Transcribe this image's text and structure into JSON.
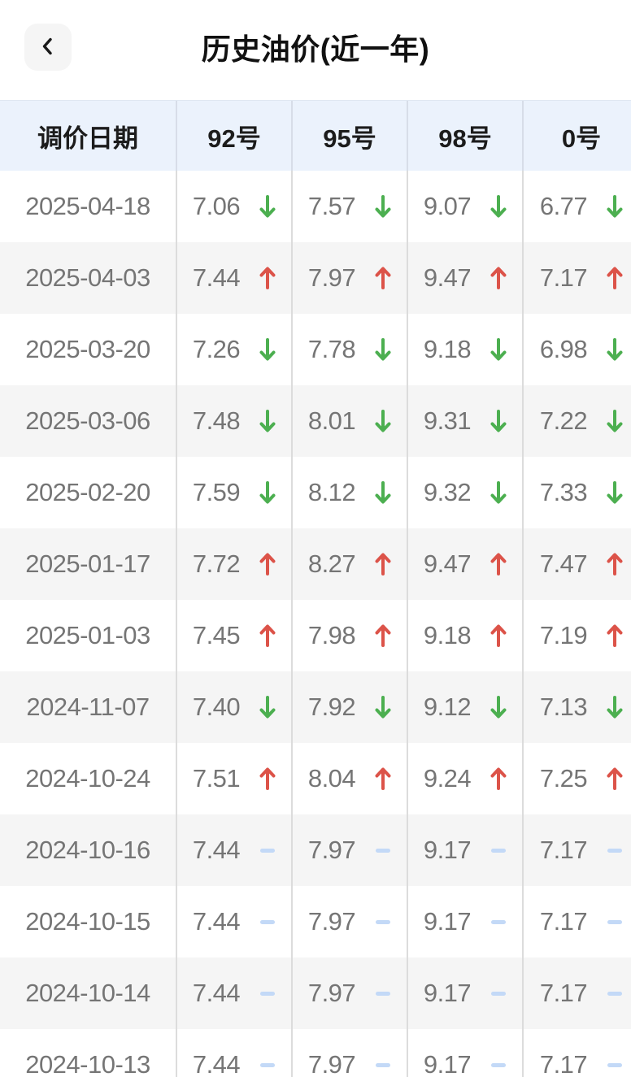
{
  "topbar": {
    "back_icon": "chevron-left-icon",
    "title": "历史油价(近一年)"
  },
  "table": {
    "columns": [
      "调价日期",
      "92号",
      "95号",
      "98号",
      "0号"
    ],
    "rows": [
      {
        "date": "2025-04-18",
        "prices": [
          {
            "value": "7.06",
            "trend": "down"
          },
          {
            "value": "7.57",
            "trend": "down"
          },
          {
            "value": "9.07",
            "trend": "down"
          },
          {
            "value": "6.77",
            "trend": "down"
          }
        ]
      },
      {
        "date": "2025-04-03",
        "prices": [
          {
            "value": "7.44",
            "trend": "up"
          },
          {
            "value": "7.97",
            "trend": "up"
          },
          {
            "value": "9.47",
            "trend": "up"
          },
          {
            "value": "7.17",
            "trend": "up"
          }
        ]
      },
      {
        "date": "2025-03-20",
        "prices": [
          {
            "value": "7.26",
            "trend": "down"
          },
          {
            "value": "7.78",
            "trend": "down"
          },
          {
            "value": "9.18",
            "trend": "down"
          },
          {
            "value": "6.98",
            "trend": "down"
          }
        ]
      },
      {
        "date": "2025-03-06",
        "prices": [
          {
            "value": "7.48",
            "trend": "down"
          },
          {
            "value": "8.01",
            "trend": "down"
          },
          {
            "value": "9.31",
            "trend": "down"
          },
          {
            "value": "7.22",
            "trend": "down"
          }
        ]
      },
      {
        "date": "2025-02-20",
        "prices": [
          {
            "value": "7.59",
            "trend": "down"
          },
          {
            "value": "8.12",
            "trend": "down"
          },
          {
            "value": "9.32",
            "trend": "down"
          },
          {
            "value": "7.33",
            "trend": "down"
          }
        ]
      },
      {
        "date": "2025-01-17",
        "prices": [
          {
            "value": "7.72",
            "trend": "up"
          },
          {
            "value": "8.27",
            "trend": "up"
          },
          {
            "value": "9.47",
            "trend": "up"
          },
          {
            "value": "7.47",
            "trend": "up"
          }
        ]
      },
      {
        "date": "2025-01-03",
        "prices": [
          {
            "value": "7.45",
            "trend": "up"
          },
          {
            "value": "7.98",
            "trend": "up"
          },
          {
            "value": "9.18",
            "trend": "up"
          },
          {
            "value": "7.19",
            "trend": "up"
          }
        ]
      },
      {
        "date": "2024-11-07",
        "prices": [
          {
            "value": "7.40",
            "trend": "down"
          },
          {
            "value": "7.92",
            "trend": "down"
          },
          {
            "value": "9.12",
            "trend": "down"
          },
          {
            "value": "7.13",
            "trend": "down"
          }
        ]
      },
      {
        "date": "2024-10-24",
        "prices": [
          {
            "value": "7.51",
            "trend": "up"
          },
          {
            "value": "8.04",
            "trend": "up"
          },
          {
            "value": "9.24",
            "trend": "up"
          },
          {
            "value": "7.25",
            "trend": "up"
          }
        ]
      },
      {
        "date": "2024-10-16",
        "prices": [
          {
            "value": "7.44",
            "trend": "flat"
          },
          {
            "value": "7.97",
            "trend": "flat"
          },
          {
            "value": "9.17",
            "trend": "flat"
          },
          {
            "value": "7.17",
            "trend": "flat"
          }
        ]
      },
      {
        "date": "2024-10-15",
        "prices": [
          {
            "value": "7.44",
            "trend": "flat"
          },
          {
            "value": "7.97",
            "trend": "flat"
          },
          {
            "value": "9.17",
            "trend": "flat"
          },
          {
            "value": "7.17",
            "trend": "flat"
          }
        ]
      },
      {
        "date": "2024-10-14",
        "prices": [
          {
            "value": "7.44",
            "trend": "flat"
          },
          {
            "value": "7.97",
            "trend": "flat"
          },
          {
            "value": "9.17",
            "trend": "flat"
          },
          {
            "value": "7.17",
            "trend": "flat"
          }
        ]
      },
      {
        "date": "2024-10-13",
        "prices": [
          {
            "value": "7.44",
            "trend": "flat"
          },
          {
            "value": "7.97",
            "trend": "flat"
          },
          {
            "value": "9.17",
            "trend": "flat"
          },
          {
            "value": "7.17",
            "trend": "flat"
          }
        ]
      }
    ]
  },
  "icons": {
    "up": "up-arrow-icon",
    "down": "down-arrow-icon",
    "flat": "flat-dash-icon"
  },
  "colors": {
    "up": "#dc5349",
    "down": "#4caf50",
    "flat": "#c3d9f7",
    "header_bg": "#ebf2fc",
    "alt_row_bg": "#f5f5f5",
    "text_gray": "#757575",
    "text_dark": "#1c1c1c"
  }
}
